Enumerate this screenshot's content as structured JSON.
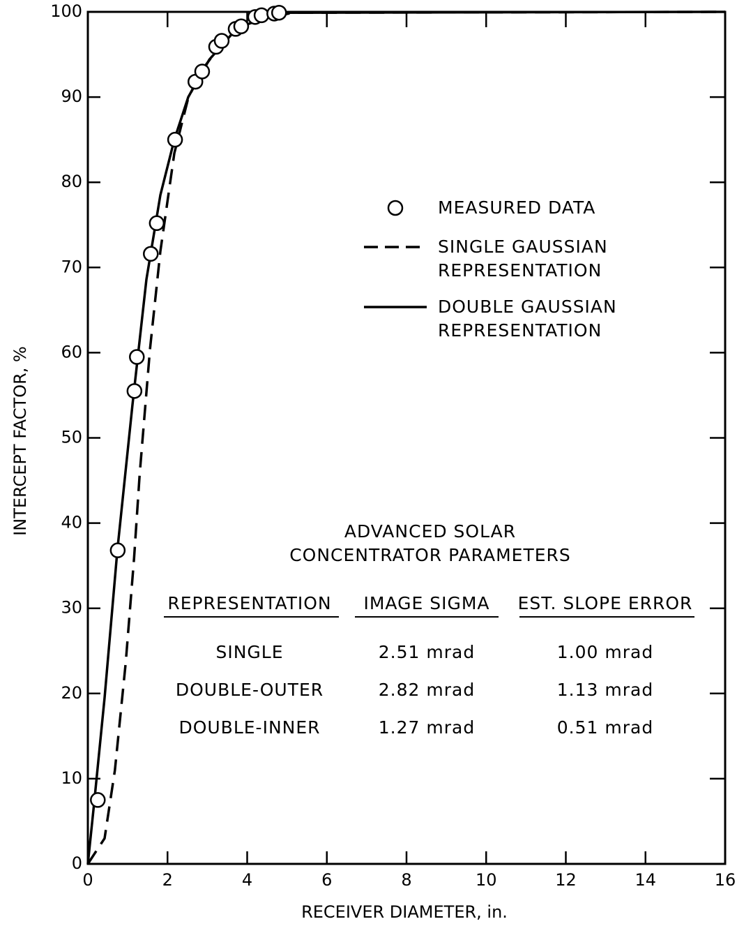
{
  "chart_data": {
    "type": "scatter-line",
    "xlabel": "RECEIVER DIAMETER, in.",
    "ylabel": "INTERCEPT FACTOR, %",
    "xlim": [
      0,
      16
    ],
    "xticks": [
      0,
      2,
      4,
      6,
      8,
      10,
      12,
      14,
      16
    ],
    "ylim": [
      0,
      100
    ],
    "yticks": [
      0,
      10,
      20,
      30,
      40,
      50,
      60,
      70,
      80,
      90,
      100
    ],
    "series": [
      {
        "name": "MEASURED DATA",
        "style": "marker",
        "color": "#000000",
        "x": [
          0.25,
          0.75,
          1.17,
          1.23,
          1.58,
          1.73,
          2.19,
          2.7,
          2.87,
          3.22,
          3.36,
          3.71,
          3.85,
          4.2,
          4.36,
          4.68,
          4.8
        ],
        "values": [
          7.5,
          36.8,
          55.5,
          59.5,
          71.6,
          75.2,
          85,
          91.8,
          93,
          95.9,
          96.6,
          98,
          98.3,
          99.4,
          99.6,
          99.8,
          99.9
        ]
      },
      {
        "name": "SINGLE GAUSSIAN REPRESENTATION",
        "style": "dashed",
        "color": "#000000",
        "x": [
          0,
          0.42,
          0.68,
          0.95,
          1.16,
          1.3,
          1.56,
          1.82,
          2.17,
          2.52,
          2.87,
          3.4,
          4.1,
          5.15,
          16
        ],
        "values": [
          0,
          3,
          11,
          23.6,
          35.9,
          45.7,
          60.4,
          71.9,
          83.4,
          89.9,
          93.2,
          96.5,
          98.9,
          99.9,
          100
        ]
      },
      {
        "name": "DOUBLE GAUSSIAN REPRESENTATION",
        "style": "solid",
        "color": "#000000",
        "x": [
          0,
          0.16,
          0.42,
          0.74,
          1.12,
          1.47,
          1.82,
          2.17,
          2.52,
          3.05,
          3.75,
          4.8,
          16
        ],
        "values": [
          0,
          7.2,
          19.5,
          36.8,
          53.9,
          68.6,
          78.5,
          85,
          90,
          94.4,
          98.1,
          99.9,
          100
        ]
      }
    ],
    "table": {
      "title": "ADVANCED SOLAR CONCENTRATOR PARAMETERS",
      "columns": [
        "REPRESENTATION",
        "IMAGE SIGMA",
        "EST. SLOPE ERROR"
      ],
      "rows": [
        [
          "SINGLE",
          "2.51 mrad",
          "1.00 mrad"
        ],
        [
          "DOUBLE-OUTER",
          "2.82 mrad",
          "1.13 mrad"
        ],
        [
          "DOUBLE-INNER",
          "1.27 mrad",
          "0.51 mrad"
        ]
      ]
    }
  }
}
